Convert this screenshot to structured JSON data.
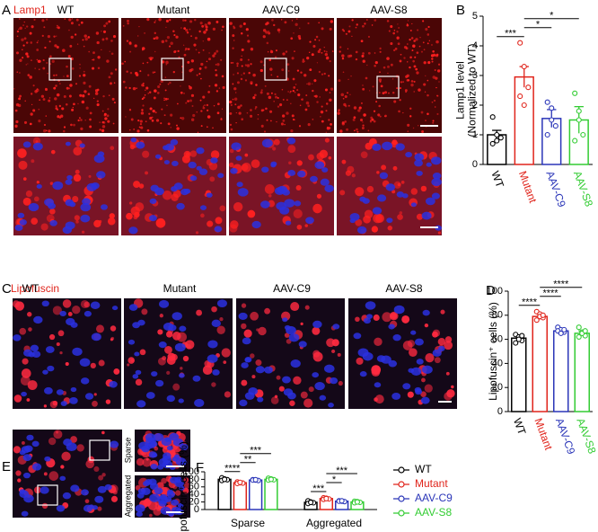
{
  "figure": {
    "A": {
      "label": "A",
      "stain": "Lamp1",
      "columns": [
        "WT",
        "Mutant",
        "AAV-C9",
        "AAV-S8"
      ]
    },
    "C": {
      "label": "C",
      "stain": "Lipofuscin",
      "columns": [
        "WT",
        "Mutant",
        "AAV-C9",
        "AAV-S8"
      ]
    },
    "E": {
      "label": "E",
      "insets": [
        "Sparse",
        "Aggregated"
      ]
    }
  },
  "chart_data": [
    {
      "type": "bar",
      "panel": "B",
      "ylabel": [
        "Lamp1 level",
        "(Normalized to WT)"
      ],
      "categories": [
        "WT",
        "Mutant",
        "AAV-C9",
        "AAV-S8"
      ],
      "colors": [
        "#000000",
        "#e0241b",
        "#2a35b8",
        "#33cc33"
      ],
      "values": [
        1.0,
        2.95,
        1.55,
        1.5
      ],
      "errors": [
        0.15,
        0.35,
        0.3,
        0.45
      ],
      "points": [
        [
          1.6,
          1.0,
          0.9,
          0.7,
          0.8
        ],
        [
          4.1,
          3.3,
          2.6,
          2.3,
          2.0
        ],
        [
          2.1,
          1.9,
          1.3,
          1.0,
          1.5
        ],
        [
          2.4,
          1.8,
          1.0,
          0.8,
          1.5
        ]
      ],
      "ylim": [
        0,
        5
      ],
      "yticks": [
        0,
        1,
        2,
        3,
        4,
        5
      ],
      "significance": [
        {
          "from": 0,
          "to": 1,
          "label": "***"
        },
        {
          "from": 1,
          "to": 2,
          "label": "*"
        },
        {
          "from": 1,
          "to": 3,
          "label": "*"
        }
      ]
    },
    {
      "type": "bar",
      "panel": "D",
      "ylabel": [
        "Lipofuscin⁺ cells (%)"
      ],
      "categories": [
        "WT",
        "Mutant",
        "AAV-C9",
        "AAV-S8"
      ],
      "colors": [
        "#000000",
        "#e0241b",
        "#2a35b8",
        "#33cc33"
      ],
      "values": [
        61,
        79,
        67,
        65
      ],
      "errors": [
        2.5,
        2.5,
        1.5,
        2
      ],
      "points": [
        [
          64,
          62,
          59,
          57,
          60,
          63
        ],
        [
          83,
          81,
          78,
          76,
          79,
          80
        ],
        [
          70,
          68,
          66,
          67,
          65,
          68
        ],
        [
          70,
          66,
          63,
          62,
          65,
          67
        ]
      ],
      "ylim": [
        0,
        100
      ],
      "yticks": [
        0,
        20,
        40,
        60,
        80,
        100
      ],
      "significance": [
        {
          "from": 0,
          "to": 1,
          "label": "****"
        },
        {
          "from": 1,
          "to": 2,
          "label": "****"
        },
        {
          "from": 1,
          "to": 3,
          "label": "****"
        }
      ]
    },
    {
      "type": "grouped-bar",
      "panel": "F",
      "ylabel": [
        "Lipofuscin⁺ cells (%)"
      ],
      "categories": [
        "Sparse",
        "Aggregated"
      ],
      "series": [
        {
          "name": "WT",
          "color": "#000000",
          "values": [
            80,
            19
          ],
          "errors": [
            2.5,
            2.5
          ],
          "points": [
            [
              84,
              81,
              79,
              77,
              80
            ],
            [
              23,
              20,
              18,
              16,
              19
            ]
          ]
        },
        {
          "name": "Mutant",
          "color": "#e0241b",
          "values": [
            71,
            29
          ],
          "errors": [
            1.5,
            1.5
          ],
          "points": [
            [
              73,
              71,
              70,
              69,
              72
            ],
            [
              31,
              30,
              28,
              27,
              29
            ]
          ]
        },
        {
          "name": "AAV-C9",
          "color": "#2a35b8",
          "values": [
            78,
            22
          ],
          "errors": [
            1,
            1
          ],
          "points": [
            [
              79,
              78,
              77,
              78,
              79
            ],
            [
              23,
              22,
              21,
              22,
              23
            ]
          ]
        },
        {
          "name": "AAV-S8",
          "color": "#33cc33",
          "values": [
            80,
            20
          ],
          "errors": [
            1.5,
            1.5
          ],
          "points": [
            [
              83,
              81,
              79,
              78,
              80
            ],
            [
              22,
              21,
              19,
              18,
              20
            ]
          ]
        }
      ],
      "ylim": [
        0,
        100
      ],
      "yticks": [
        0,
        20,
        40,
        60,
        80,
        100
      ],
      "significance": [
        {
          "group": 0,
          "from": 0,
          "to": 1,
          "label": "****"
        },
        {
          "group": 0,
          "from": 1,
          "to": 2,
          "label": "**"
        },
        {
          "group": 0,
          "from": 1,
          "to": 3,
          "label": "***"
        },
        {
          "group": 1,
          "from": 0,
          "to": 1,
          "label": "***"
        },
        {
          "group": 1,
          "from": 1,
          "to": 2,
          "label": "*"
        },
        {
          "group": 1,
          "from": 1,
          "to": 3,
          "label": "***"
        }
      ]
    }
  ]
}
